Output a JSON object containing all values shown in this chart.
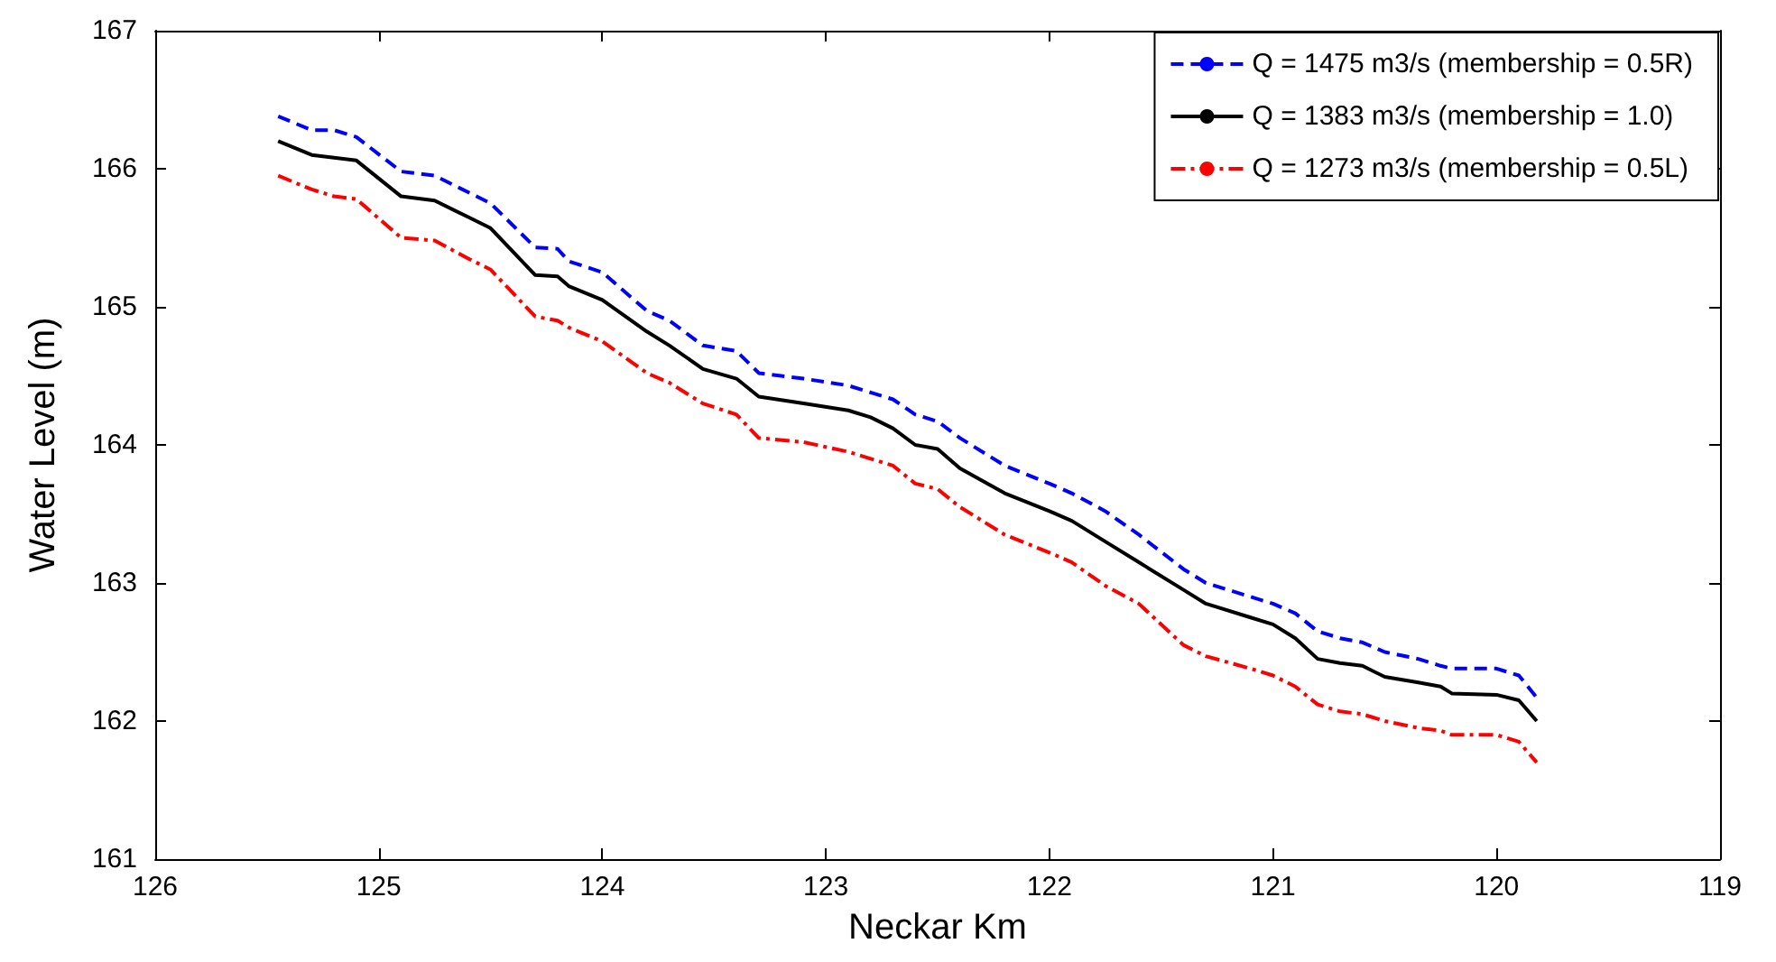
{
  "chart_data": {
    "type": "line",
    "xlabel": "Neckar Km",
    "ylabel": "Water Level (m)",
    "x": [
      125.45,
      125.3,
      125.2,
      125.1,
      124.9,
      124.75,
      124.6,
      124.5,
      124.3,
      124.2,
      124.15,
      124.0,
      123.8,
      123.7,
      123.55,
      123.4,
      123.3,
      123.1,
      122.9,
      122.8,
      122.7,
      122.6,
      122.5,
      122.4,
      122.2,
      122.0,
      121.9,
      121.75,
      121.6,
      121.4,
      121.3,
      121.1,
      121.0,
      120.9,
      120.8,
      120.7,
      120.6,
      120.5,
      120.35,
      120.25,
      120.2,
      120.0,
      119.9,
      119.82
    ],
    "series": [
      {
        "name": "Q = 1475 m3/s (membership = 0.5R)",
        "color": "#0000ff",
        "line_style": "dashed",
        "values": [
          166.38,
          166.28,
          166.28,
          166.23,
          165.98,
          165.95,
          165.83,
          165.75,
          165.43,
          165.42,
          165.33,
          165.25,
          164.97,
          164.9,
          164.72,
          164.68,
          164.52,
          164.48,
          164.43,
          164.38,
          164.33,
          164.22,
          164.17,
          164.05,
          163.85,
          163.72,
          163.65,
          163.52,
          163.35,
          163.1,
          163.0,
          162.9,
          162.85,
          162.78,
          162.65,
          162.6,
          162.57,
          162.5,
          162.45,
          162.4,
          162.38,
          162.38,
          162.33,
          162.17
        ]
      },
      {
        "name": "Q = 1383 m3/s (membership = 1.0)",
        "color": "#000000",
        "line_style": "solid",
        "values": [
          166.2,
          166.1,
          166.08,
          166.06,
          165.8,
          165.77,
          165.65,
          165.57,
          165.23,
          165.22,
          165.15,
          165.05,
          164.82,
          164.72,
          164.55,
          164.48,
          164.35,
          164.3,
          164.25,
          164.2,
          164.12,
          164.0,
          163.97,
          163.83,
          163.65,
          163.52,
          163.45,
          163.3,
          163.15,
          162.95,
          162.85,
          162.75,
          162.7,
          162.6,
          162.45,
          162.42,
          162.4,
          162.32,
          162.28,
          162.25,
          162.2,
          162.19,
          162.15,
          162.0
        ]
      },
      {
        "name": "Q = 1273 m3/s (membership = 0.5L)",
        "color": "#ff0000",
        "line_style": "dashdot",
        "values": [
          165.95,
          165.85,
          165.8,
          165.78,
          165.5,
          165.48,
          165.35,
          165.27,
          164.93,
          164.9,
          164.85,
          164.75,
          164.52,
          164.45,
          164.3,
          164.22,
          164.05,
          164.02,
          163.95,
          163.9,
          163.85,
          163.72,
          163.68,
          163.55,
          163.35,
          163.22,
          163.15,
          162.98,
          162.85,
          162.55,
          162.47,
          162.38,
          162.33,
          162.25,
          162.12,
          162.07,
          162.05,
          162.0,
          161.95,
          161.93,
          161.9,
          161.9,
          161.85,
          161.7
        ]
      }
    ],
    "xlim": [
      126,
      119
    ],
    "xticks": [
      126,
      125,
      124,
      123,
      122,
      121,
      120,
      119
    ],
    "ylim": [
      161,
      167
    ],
    "yticks": [
      161,
      162,
      163,
      164,
      165,
      166,
      167
    ],
    "grid": false,
    "legend": "top right",
    "marker": "none"
  }
}
